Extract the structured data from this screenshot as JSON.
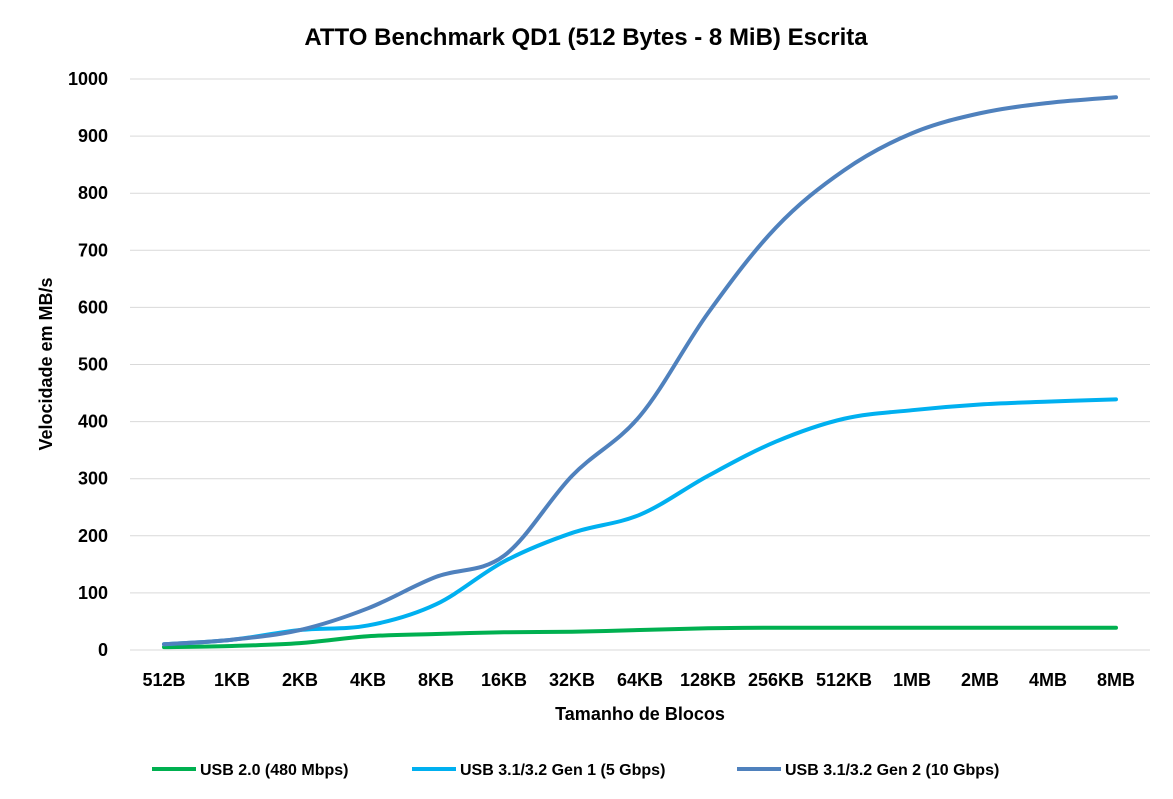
{
  "chart_data": {
    "type": "line",
    "title": "ATTO Benchmark QD1 (512 Bytes - 8 MiB) Escrita",
    "xlabel": "Tamanho de Blocos",
    "ylabel": "Velocidade em MB/s",
    "ylim": [
      0,
      1000
    ],
    "yticks": [
      "0",
      "100",
      "200",
      "300",
      "400",
      "500",
      "600",
      "700",
      "800",
      "900",
      "1000"
    ],
    "grid": true,
    "legend_position": "bottom",
    "categories": [
      "512B",
      "1KB",
      "2KB",
      "4KB",
      "8KB",
      "16KB",
      "32KB",
      "64KB",
      "128KB",
      "256KB",
      "512KB",
      "1MB",
      "2MB",
      "4MB",
      "8MB"
    ],
    "series": [
      {
        "name": "USB 2.0 (480 Mbps)",
        "color": "#00b050",
        "values": [
          5,
          7,
          12,
          24,
          28,
          31,
          32,
          35,
          38,
          39,
          39,
          39,
          39,
          39,
          39
        ]
      },
      {
        "name": "USB 3.1/3.2 Gen 1 (5 Gbps)",
        "color": "#00b0f0",
        "values": [
          10,
          18,
          35,
          43,
          80,
          155,
          205,
          237,
          305,
          365,
          405,
          420,
          430,
          435,
          439
        ]
      },
      {
        "name": "USB 3.1/3.2 Gen 2 (10 Gbps)",
        "color": "#4f81bd",
        "values": [
          10,
          18,
          35,
          73,
          128,
          165,
          305,
          410,
          590,
          740,
          840,
          905,
          940,
          958,
          968
        ]
      }
    ]
  }
}
